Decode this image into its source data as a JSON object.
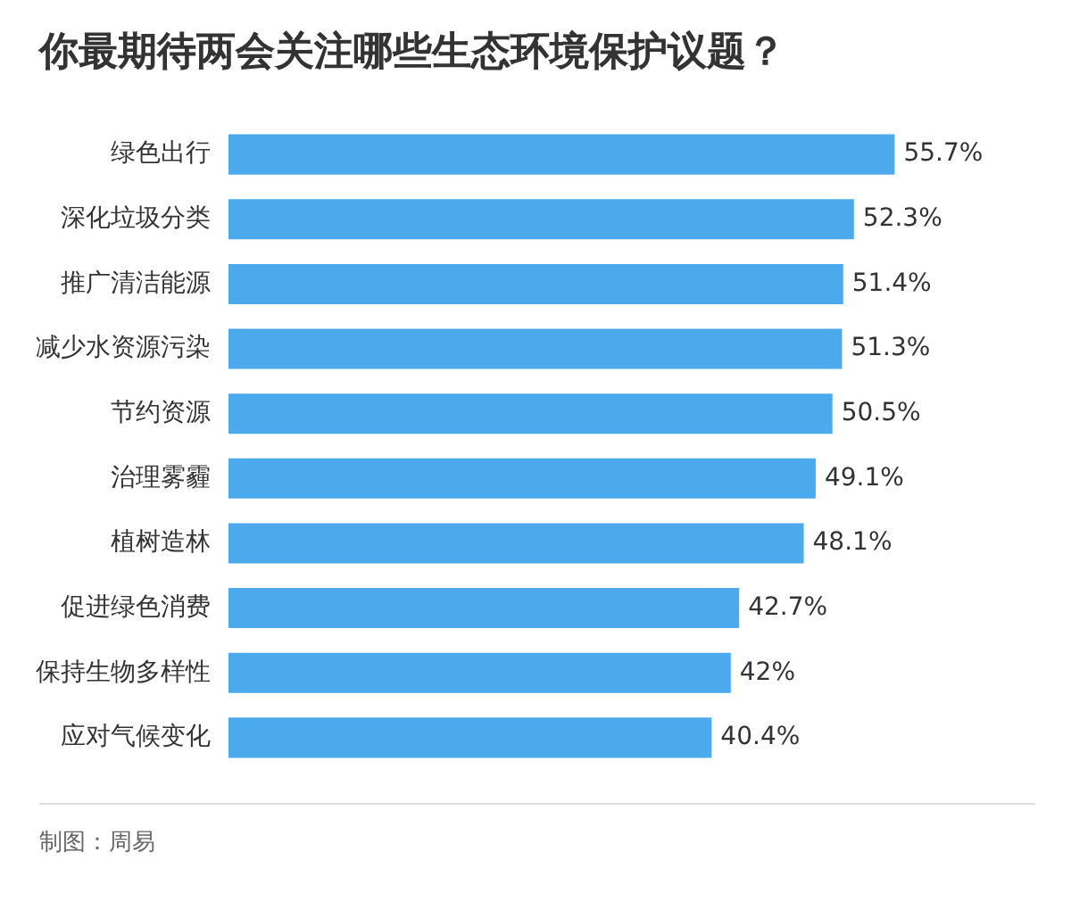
{
  "chart_data": {
    "type": "bar",
    "orientation": "horizontal",
    "title": "你最期待两会关注哪些生态环境保护议题？",
    "categories": [
      "绿色出行",
      "深化垃圾分类",
      "推广清洁能源",
      "减少水资源污染",
      "节约资源",
      "治理雾霾",
      "植树造林",
      "促进绿色消费",
      "保持生物多样性",
      "应对气候变化"
    ],
    "values": [
      55.7,
      52.3,
      51.4,
      51.3,
      50.5,
      49.1,
      48.1,
      42.7,
      42,
      40.4
    ],
    "value_labels": [
      "55.7%",
      "52.3%",
      "51.4%",
      "51.3%",
      "50.5%",
      "49.1%",
      "48.1%",
      "42.7%",
      "42%",
      "40.4%"
    ],
    "color": "#4ba9ec",
    "grid": false,
    "legend": false,
    "tick_labels": "y",
    "annotations": [
      "制图：周易"
    ]
  }
}
